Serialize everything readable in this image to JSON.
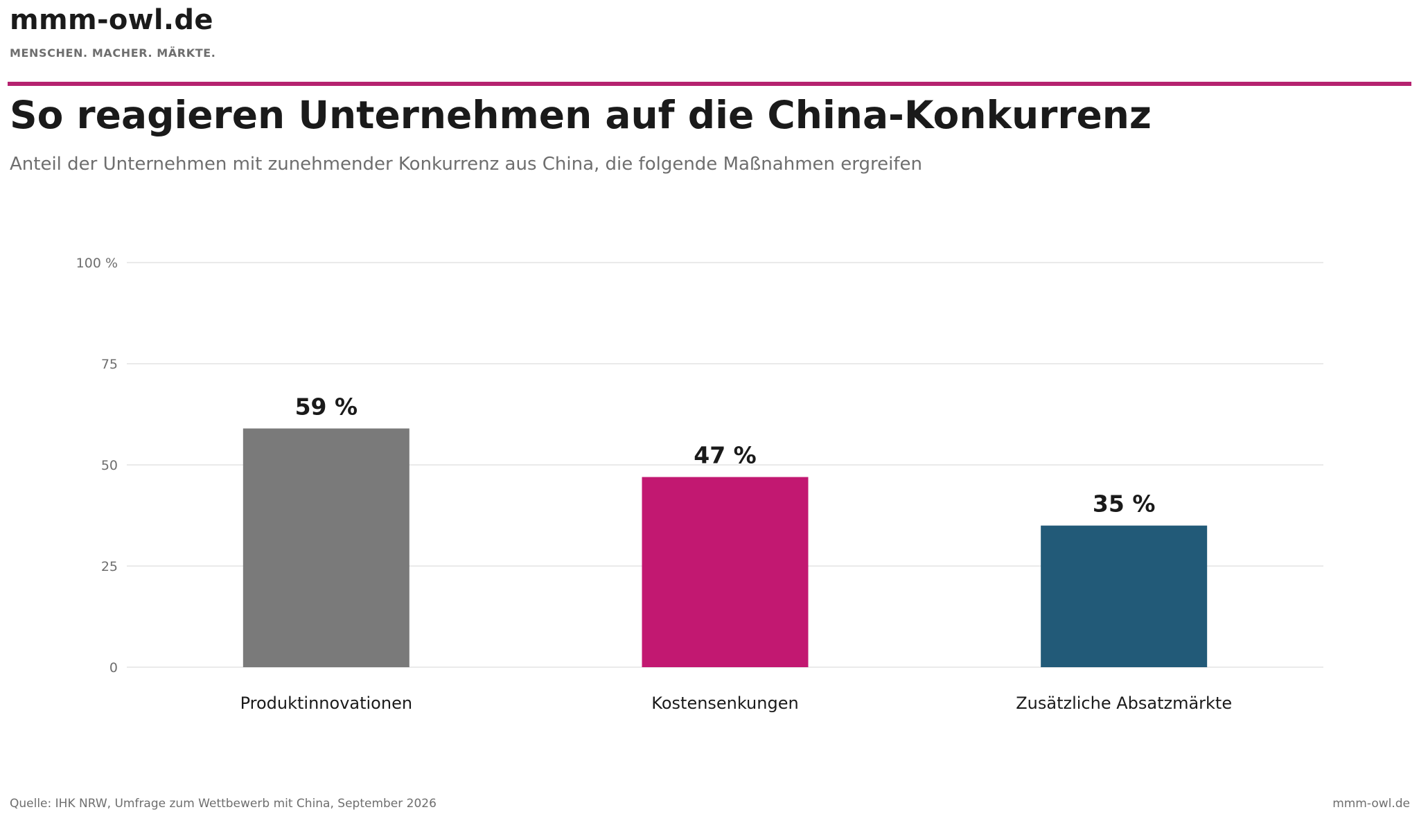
{
  "header": {
    "brand": "mmm-owl.de",
    "tagline": "MENSCHEN. MACHER. MÄRKTE.",
    "accent_color": "#b5226f"
  },
  "title": "So reagieren Unternehmen auf die China-Konkurrenz",
  "subtitle": "Anteil der Unternehmen mit zunehmender Konkurrenz aus China, die folgende Maßnahmen ergreifen",
  "chart_data": {
    "type": "bar",
    "categories": [
      "Produktinnovationen",
      "Kostensenkungen",
      "Zusätzliche Absatzmärkte"
    ],
    "values": [
      59,
      47,
      35
    ],
    "value_labels": [
      "59 %",
      "47 %",
      "35 %"
    ],
    "colors": [
      "#7a7a7a",
      "#c21871",
      "#225a78"
    ],
    "ylim": [
      0,
      100
    ],
    "yticks": [
      0,
      25,
      50,
      75,
      100
    ],
    "ytick_labels": [
      "0",
      "25",
      "50",
      "75",
      "100 %"
    ],
    "grid": true,
    "xlabel": "",
    "ylabel": ""
  },
  "footer": {
    "source": "Quelle: IHK NRW, Umfrage zum Wettbewerb mit China, September 2026",
    "brand": "mmm-owl.de"
  }
}
